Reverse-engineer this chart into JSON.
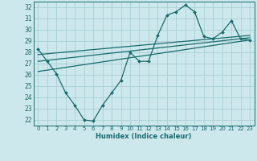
{
  "title": "",
  "xlabel": "Humidex (Indice chaleur)",
  "bg_color": "#cce8ec",
  "grid_color": "#aacfd6",
  "line_color": "#1a6b6b",
  "xlim": [
    -0.5,
    23.5
  ],
  "ylim": [
    21.5,
    32.5
  ],
  "yticks": [
    22,
    23,
    24,
    25,
    26,
    27,
    28,
    29,
    30,
    31,
    32
  ],
  "xticks": [
    0,
    1,
    2,
    3,
    4,
    5,
    6,
    7,
    8,
    9,
    10,
    11,
    12,
    13,
    14,
    15,
    16,
    17,
    18,
    19,
    20,
    21,
    22,
    23
  ],
  "curve_x": [
    0,
    1,
    2,
    3,
    4,
    5,
    6,
    7,
    8,
    9,
    10,
    11,
    12,
    13,
    14,
    15,
    16,
    17,
    18,
    19,
    20,
    21,
    22,
    23
  ],
  "curve_y": [
    28.3,
    27.2,
    26.1,
    24.4,
    23.3,
    22.0,
    21.9,
    23.3,
    24.4,
    25.5,
    28.0,
    27.2,
    27.2,
    29.5,
    31.3,
    31.6,
    32.2,
    31.6,
    29.4,
    29.2,
    29.8,
    30.8,
    29.2,
    29.1
  ],
  "line1_x": [
    0,
    23
  ],
  "line1_y": [
    27.2,
    29.3
  ],
  "line2_x": [
    0,
    23
  ],
  "line2_y": [
    27.8,
    29.5
  ],
  "line3_x": [
    0,
    23
  ],
  "line3_y": [
    26.3,
    29.1
  ]
}
